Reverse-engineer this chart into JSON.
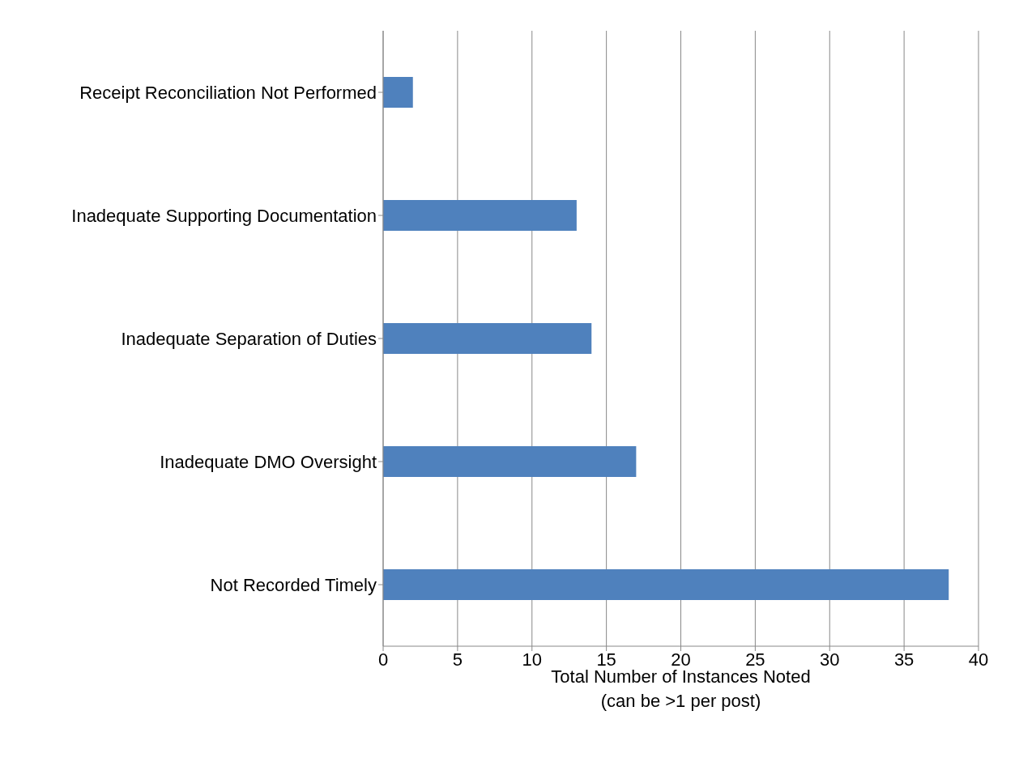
{
  "chart_data": {
    "type": "bar",
    "orientation": "horizontal",
    "categories": [
      "Receipt Reconciliation Not Performed",
      "Inadequate Supporting Documentation",
      "Inadequate Separation of Duties",
      "Inadequate DMO Oversight",
      "Not Recorded Timely"
    ],
    "values": [
      2,
      13,
      14,
      17,
      38
    ],
    "color": "#4f81bd",
    "xlabel": "Total Number of Instances Noted\n(can be >1 per post)",
    "xlim": [
      0,
      40
    ],
    "xticks": [
      0,
      5,
      10,
      15,
      20,
      25,
      30,
      35,
      40
    ],
    "grid": "x"
  }
}
